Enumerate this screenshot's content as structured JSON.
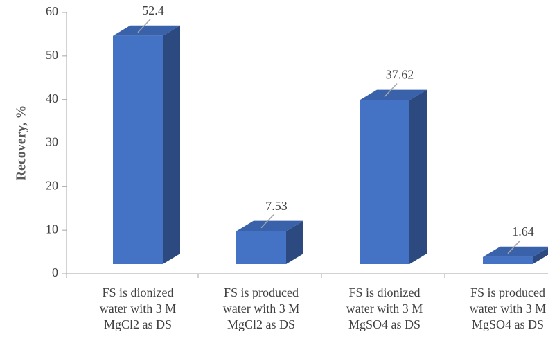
{
  "chart_data": {
    "type": "bar3d",
    "y_label": "Recovery, %",
    "categories": [
      [
        "FS is dionized",
        "water with 3 M",
        "MgCl2 as DS"
      ],
      [
        "FS is produced",
        "water with 3 M",
        "MgCl2 as DS"
      ],
      [
        "FS is dionized",
        "water with 3 M",
        "MgSO4 as DS"
      ],
      [
        "FS is produced",
        "water with 3 M",
        "MgSO4 as DS"
      ]
    ],
    "values": [
      52.4,
      7.53,
      37.62,
      1.64
    ],
    "color": "#4472c4",
    "ylim": [
      0,
      60
    ],
    "yticks": [
      0,
      10,
      20,
      30,
      40,
      50,
      60
    ]
  }
}
